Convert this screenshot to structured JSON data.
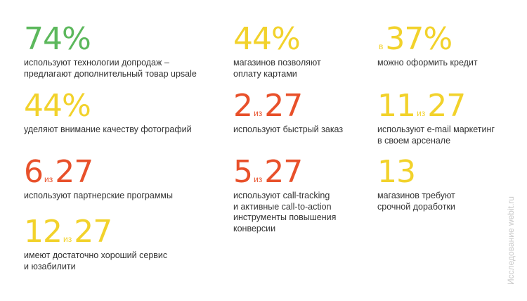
{
  "colors": {
    "green": "#5cb85c",
    "yellow": "#f2d22b",
    "red": "#e8502a",
    "text": "#333333",
    "watermark": "#c9c9c9"
  },
  "stats": [
    {
      "value": "74%",
      "prefix": "",
      "suffix": "",
      "description": "используют технологии допродаж –\nпредлагают дополнительный товар upsale",
      "color": "green"
    },
    {
      "value": "44%",
      "prefix": "",
      "suffix": "",
      "description": "магазинов позволяют\nоплату картами",
      "color": "yellow"
    },
    {
      "value": "37%",
      "prefix": "в",
      "suffix": "",
      "description": "можно оформить кредит",
      "color": "yellow"
    },
    {
      "value": "44%",
      "prefix": "",
      "suffix": "",
      "description": "уделяют внимание качеству фотографий",
      "color": "yellow"
    },
    {
      "value": "2",
      "prefix": "",
      "suffix": "из",
      "total": "27",
      "description": "используют быстрый заказ",
      "color": "red"
    },
    {
      "value": "11",
      "prefix": "",
      "suffix": "из",
      "total": "27",
      "description": "используют e-mail маркетинг\nв своем арсенале",
      "color": "yellow"
    },
    {
      "value": "6",
      "prefix": "",
      "suffix": "из",
      "total": "27",
      "description": "используют партнерские программы",
      "color": "red"
    },
    {
      "value": "5",
      "prefix": "",
      "suffix": "из",
      "total": "27",
      "description": "используют call-tracking\nи активные call-to-action\nинструменты повышения\nконверсии",
      "color": "red"
    },
    {
      "value": "13",
      "prefix": "",
      "suffix": "",
      "description": "магазинов требуют\nсрочной доработки",
      "color": "yellow"
    },
    {
      "value": "12",
      "prefix": "",
      "suffix": "из",
      "total": "27",
      "description": "имеют достаточно хороший сервис\nи юзабилити",
      "color": "yellow"
    }
  ],
  "watermark": "Исследование webit.ru",
  "chart_data": {
    "type": "table",
    "rows": [
      {
        "label": "используют технологии допродаж – предлагают дополнительный товар upsale",
        "value": "74%"
      },
      {
        "label": "магазинов позволяют оплату картами",
        "value": "44%"
      },
      {
        "label": "можно оформить кредит",
        "value": "в 37%"
      },
      {
        "label": "уделяют внимание качеству фотографий",
        "value": "44%"
      },
      {
        "label": "используют быстрый заказ",
        "value": "2 из 27"
      },
      {
        "label": "используют e-mail маркетинг в своем арсенале",
        "value": "11 из 27"
      },
      {
        "label": "используют партнерские программы",
        "value": "6 из 27"
      },
      {
        "label": "используют call-tracking и активные call-to-action инструменты повышения конверсии",
        "value": "5 из 27"
      },
      {
        "label": "магазинов требуют срочной доработки",
        "value": "13"
      },
      {
        "label": "имеют достаточно хороший сервис и юзабилити",
        "value": "12 из 27"
      }
    ]
  }
}
